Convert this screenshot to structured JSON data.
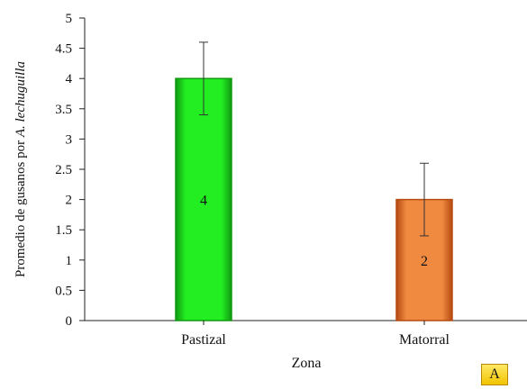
{
  "chart_data": {
    "type": "bar",
    "categories": [
      "Pastizal",
      "Matorral"
    ],
    "values": [
      4,
      2
    ],
    "errors": [
      0.6,
      0.6
    ],
    "data_labels": [
      "4",
      "2"
    ],
    "bar_colors": [
      "#22ee22",
      "#f08a40"
    ],
    "bar_edge_colors": [
      "#119911",
      "#b54a12"
    ],
    "xlabel": "Zona",
    "ylabel_prefix": "Promedio de gusanos por ",
    "ylabel_italic": "A. lechuguilla",
    "ylim": [
      0,
      5
    ],
    "yticks": [
      "0",
      "0.5",
      "1",
      "1.5",
      "2",
      "2.5",
      "3",
      "3.5",
      "4",
      "4.5",
      "5"
    ],
    "grid": false
  },
  "panel_label": "A"
}
